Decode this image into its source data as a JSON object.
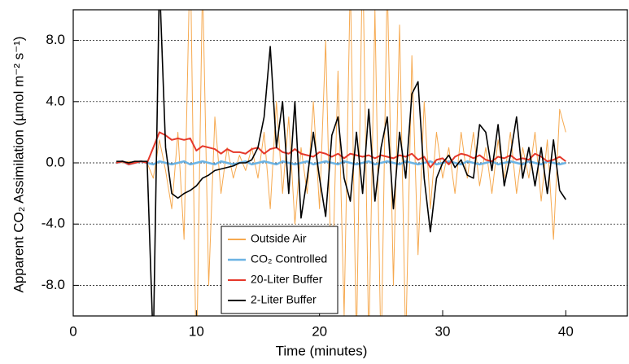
{
  "chart_data": {
    "type": "line",
    "x_label": "Time (minutes)",
    "y_label": "Apparent CO₂ Assimilation (µmol m⁻² s⁻¹)",
    "xlim": [
      0,
      45
    ],
    "xticks": [
      0,
      10,
      20,
      30,
      40
    ],
    "ylim": [
      -10,
      10
    ],
    "yticks": [
      {
        "value": -8,
        "label": "-8.0"
      },
      {
        "value": -4,
        "label": "-4.0"
      },
      {
        "value": 0,
        "label": "0.0"
      },
      {
        "value": 4,
        "label": "4.0"
      },
      {
        "value": 8,
        "label": "8.0"
      }
    ],
    "grid": true,
    "legend": "bottom-center",
    "x": [
      3.5,
      4,
      4.5,
      5,
      5.5,
      6,
      6.5,
      7,
      7.5,
      8,
      8.5,
      9,
      9.5,
      10,
      10.5,
      11,
      11.5,
      12,
      12.5,
      13,
      13.5,
      14,
      14.5,
      15,
      15.5,
      16,
      16.5,
      17,
      17.5,
      18,
      18.5,
      19,
      19.5,
      20,
      20.5,
      21,
      21.5,
      22,
      22.5,
      23,
      23.5,
      24,
      24.5,
      25,
      25.5,
      26,
      26.5,
      27,
      27.5,
      28,
      28.5,
      29,
      29.5,
      30,
      30.5,
      31,
      31.5,
      32,
      32.5,
      33,
      33.5,
      34,
      34.5,
      35,
      35.5,
      36,
      36.5,
      37,
      37.5,
      38,
      38.5,
      39,
      39.5,
      40
    ],
    "series": [
      {
        "name": "Outside Air",
        "color": "#f6a94f",
        "width": 1,
        "values": [
          0.1,
          0,
          0.1,
          0,
          0.1,
          0,
          -1,
          1.5,
          -0.5,
          -3,
          2,
          -5,
          14,
          -14,
          12,
          -8,
          3,
          -2,
          1,
          -1,
          0.5,
          -0.5,
          1,
          -1,
          2,
          -3,
          4,
          -2,
          3,
          -4,
          1,
          -2,
          4,
          -3,
          8,
          -9,
          6,
          -10,
          12,
          -12,
          14,
          -12,
          10,
          -13,
          12,
          -8,
          9,
          -12,
          7,
          -6,
          4,
          -3,
          2,
          -1,
          1,
          -2,
          2,
          -1,
          2,
          -1.5,
          1,
          -2,
          1.5,
          -1,
          2,
          -2,
          1,
          -1,
          2,
          -2.5,
          1.5,
          -5,
          3.5,
          2
        ]
      },
      {
        "name": "CO₂ Controlled",
        "color": "#6cb3e3",
        "width": 2.5,
        "values": [
          0,
          0.1,
          -0.1,
          0,
          0.1,
          0,
          -0.1,
          0.1,
          0,
          -0.1,
          0,
          0.1,
          -0.1,
          0,
          0.1,
          0,
          -0.1,
          0.1,
          0,
          -0.1,
          0,
          0.1,
          -0.1,
          0,
          0.1,
          0,
          -0.1,
          0.1,
          0,
          -0.1,
          0,
          0.1,
          -0.1,
          0,
          0.1,
          0,
          -0.1,
          0.1,
          0,
          -0.1,
          0,
          0.1,
          -0.1,
          0,
          0.1,
          0,
          -0.1,
          0.1,
          0,
          -0.1,
          0,
          0.1,
          -0.1,
          0,
          0.1,
          0,
          -0.1,
          0.1,
          0,
          -0.1,
          0,
          0.1,
          -0.1,
          0,
          0.1,
          0,
          -0.1,
          0.1,
          0,
          -0.1,
          0.1,
          0,
          -0.1,
          0
        ]
      },
      {
        "name": "20-Liter Buffer",
        "color": "#e5382a",
        "width": 2,
        "values": [
          0,
          0.1,
          -0.1,
          0,
          0.1,
          0,
          1,
          2,
          1.8,
          1.5,
          1.6,
          1.5,
          1.6,
          0.8,
          1.1,
          1,
          0.9,
          0.6,
          0.9,
          0.7,
          0.7,
          0.6,
          0.9,
          1,
          0.6,
          0.9,
          1,
          0.7,
          0.6,
          0.9,
          0.6,
          0.5,
          0.4,
          0.7,
          0.6,
          0.4,
          0.6,
          0.3,
          0.6,
          0.5,
          0.4,
          0.5,
          0.3,
          0.5,
          0.4,
          0.3,
          0.5,
          0.4,
          0.6,
          0.2,
          0.4,
          -0.3,
          0.2,
          0.3,
          -0.1,
          0.4,
          0.6,
          0.5,
          0.3,
          0.5,
          0.2,
          0.1,
          0.4,
          0.3,
          0.5,
          0.2,
          0.3,
          0.2,
          0.6,
          0.4,
          0.1,
          0.2,
          0.4,
          0.1
        ]
      },
      {
        "name": "2-Liter Buffer",
        "color": "#000000",
        "width": 1.6,
        "values": [
          0.1,
          0.1,
          0,
          0.1,
          0.1,
          0.1,
          -12,
          12,
          1,
          -2,
          -2.3,
          -2,
          -1.8,
          -1.5,
          -1,
          -0.8,
          -0.5,
          -0.4,
          -0.3,
          -0.2,
          0,
          0,
          0.2,
          1,
          3,
          7.6,
          1,
          4,
          -2,
          4,
          -3.6,
          -1,
          2,
          -1,
          -3.5,
          1.8,
          3,
          -1,
          -2.5,
          2,
          -2,
          3.5,
          -2.5,
          1,
          3,
          -3,
          2,
          -1,
          4.5,
          5.3,
          -1,
          -4.5,
          -1,
          0,
          0.5,
          -0.3,
          0.2,
          -0.8,
          -1,
          2.5,
          2,
          -0.5,
          2.5,
          -1.5,
          0.5,
          3,
          -1,
          1,
          -1.5,
          1,
          -2,
          1.5,
          -1.8,
          -2.4
        ]
      }
    ]
  }
}
